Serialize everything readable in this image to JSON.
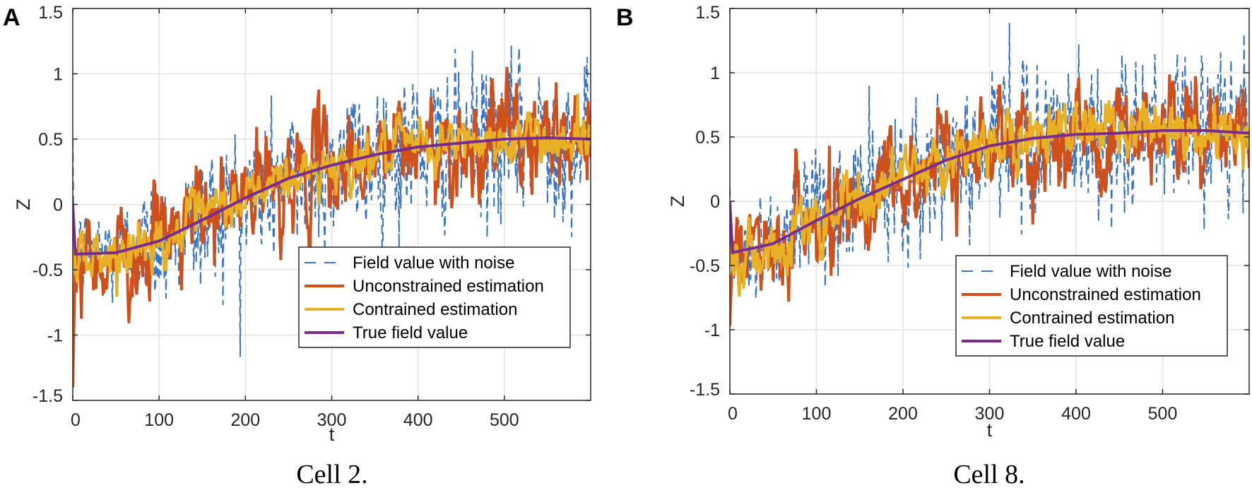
{
  "chart_data": [
    {
      "type": "line",
      "panel_label": "A",
      "caption": "Cell 2.",
      "xlabel": "t",
      "ylabel": "Z",
      "xlim": [
        0,
        600
      ],
      "ylim": [
        -1.5,
        1.5
      ],
      "xticks": [
        "0",
        "100",
        "200",
        "300",
        "400",
        "500"
      ],
      "xtick_values": [
        0,
        100,
        200,
        300,
        400,
        500
      ],
      "yticks": [
        "-1.5",
        "-1",
        "-0.5",
        "0",
        "0.5",
        "1",
        "1.5"
      ],
      "ytick_values": [
        -1.5,
        -1,
        -0.5,
        0,
        0.5,
        1,
        1.5
      ],
      "grid": true,
      "legend_position": "center-right",
      "series": [
        {
          "name": "Field value with noise",
          "color": "#3a75c4",
          "style": "dashed",
          "noise_std": 0.3
        },
        {
          "name": "Unconstrained estimation",
          "color": "#d0501c",
          "style": "solid",
          "noise_std": 0.1,
          "initial_value": -1.4
        },
        {
          "name": "Contrained estimation",
          "color": "#e8b025",
          "style": "solid",
          "noise_std": 0.05
        },
        {
          "name": "True field value",
          "color": "#7a2c8e",
          "style": "solid",
          "t": [
            0,
            3,
            50,
            100,
            150,
            200,
            250,
            300,
            350,
            400,
            450,
            500,
            550,
            600
          ],
          "z": [
            0,
            -0.38,
            -0.37,
            -0.28,
            -0.12,
            0.05,
            0.2,
            0.3,
            0.38,
            0.44,
            0.47,
            0.5,
            0.51,
            0.5
          ]
        }
      ]
    },
    {
      "type": "line",
      "panel_label": "B",
      "caption": "Cell 8.",
      "xlabel": "t",
      "ylabel": "Z",
      "xlim": [
        0,
        600
      ],
      "ylim": [
        -1.5,
        1.5
      ],
      "xticks": [
        "0",
        "100",
        "200",
        "300",
        "400",
        "500"
      ],
      "xtick_values": [
        0,
        100,
        200,
        300,
        400,
        500
      ],
      "yticks": [
        "-1.5",
        "-1",
        "-0.5",
        "0",
        "0.5",
        "1",
        "1.5"
      ],
      "ytick_values": [
        -1.5,
        -1,
        -0.5,
        0,
        0.5,
        1,
        1.5
      ],
      "grid": true,
      "legend_position": "center-right",
      "series": [
        {
          "name": "Field value with noise",
          "color": "#3a75c4",
          "style": "dashed",
          "noise_std": 0.3
        },
        {
          "name": "Unconstrained estimation",
          "color": "#d0501c",
          "style": "solid",
          "noise_std": 0.1,
          "initial_value": -0.97
        },
        {
          "name": "Contrained estimation",
          "color": "#e8b025",
          "style": "solid",
          "noise_std": 0.06
        },
        {
          "name": "True field value",
          "color": "#7a2c8e",
          "style": "solid",
          "t": [
            0,
            3,
            50,
            100,
            150,
            200,
            250,
            300,
            350,
            400,
            450,
            500,
            550,
            600
          ],
          "z": [
            0,
            -0.4,
            -0.33,
            -0.15,
            0.02,
            0.17,
            0.32,
            0.43,
            0.49,
            0.52,
            0.53,
            0.55,
            0.55,
            0.53
          ]
        }
      ]
    }
  ]
}
